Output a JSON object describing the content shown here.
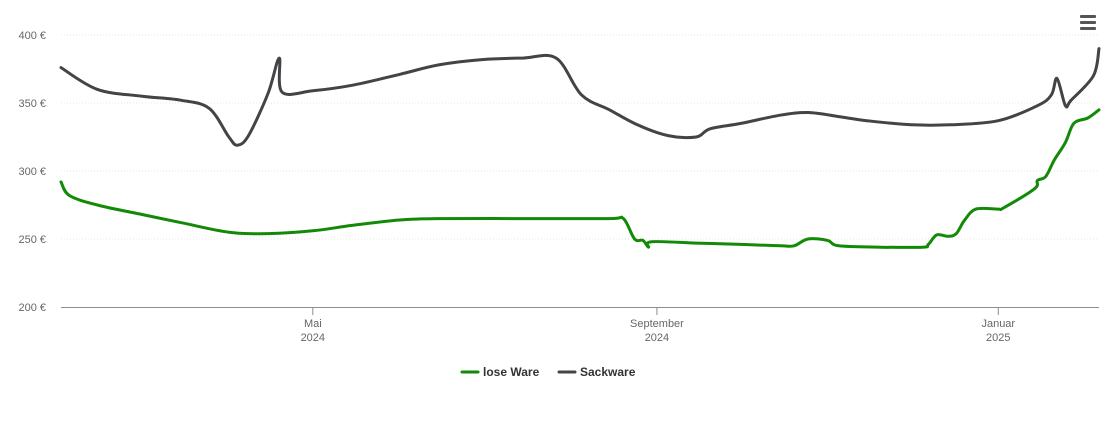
{
  "menu": {
    "icon": "hamburger-menu-icon"
  },
  "chart_data": {
    "type": "line",
    "title": "",
    "xlabel": "",
    "ylabel": "",
    "ylim": [
      200,
      400
    ],
    "y_ticks": [
      "200 €",
      "250 €",
      "300 €",
      "350 €",
      "400 €"
    ],
    "y_tick_values": [
      200,
      250,
      300,
      350,
      400
    ],
    "x_ticks": [
      {
        "date": "2024-05-01",
        "line1": "Mai",
        "line2": "2024"
      },
      {
        "date": "2024-09-01",
        "line1": "September",
        "line2": "2024"
      },
      {
        "date": "2025-01-01",
        "line1": "Januar",
        "line2": "2025"
      }
    ],
    "xlim": [
      "2024-02-01",
      "2025-02-06"
    ],
    "grid": true,
    "legend": "bottom-center",
    "series": [
      {
        "name": "lose Ware",
        "color": "#138a07",
        "points": [
          [
            "2024-02-01",
            292
          ],
          [
            "2024-02-04",
            282
          ],
          [
            "2024-02-14",
            275
          ],
          [
            "2024-03-01",
            268
          ],
          [
            "2024-03-15",
            262
          ],
          [
            "2024-04-01",
            255
          ],
          [
            "2024-04-15",
            254
          ],
          [
            "2024-05-01",
            256
          ],
          [
            "2024-05-15",
            260
          ],
          [
            "2024-06-01",
            264
          ],
          [
            "2024-06-15",
            265
          ],
          [
            "2024-07-15",
            265
          ],
          [
            "2024-08-15",
            265
          ],
          [
            "2024-08-20",
            265
          ],
          [
            "2024-08-24",
            250
          ],
          [
            "2024-08-27",
            249
          ],
          [
            "2024-08-29",
            244
          ],
          [
            "2024-08-30",
            248
          ],
          [
            "2024-09-15",
            247
          ],
          [
            "2024-10-01",
            246
          ],
          [
            "2024-10-15",
            245
          ],
          [
            "2024-10-20",
            245
          ],
          [
            "2024-10-25",
            250
          ],
          [
            "2024-11-01",
            249
          ],
          [
            "2024-11-05",
            245
          ],
          [
            "2024-11-20",
            244
          ],
          [
            "2024-12-05",
            244
          ],
          [
            "2024-12-07",
            246
          ],
          [
            "2024-12-10",
            253
          ],
          [
            "2024-12-14",
            252
          ],
          [
            "2024-12-17",
            254
          ],
          [
            "2024-12-20",
            264
          ],
          [
            "2024-12-24",
            272
          ],
          [
            "2025-01-01",
            272
          ],
          [
            "2025-01-03",
            273
          ],
          [
            "2025-01-14",
            287
          ],
          [
            "2025-01-15",
            293
          ],
          [
            "2025-01-18",
            296
          ],
          [
            "2025-01-21",
            308
          ],
          [
            "2025-01-25",
            321
          ],
          [
            "2025-01-28",
            335
          ],
          [
            "2025-02-02",
            339
          ],
          [
            "2025-02-06",
            345
          ]
        ]
      },
      {
        "name": "Sackware",
        "color": "#434348",
        "points": [
          [
            "2024-02-01",
            376
          ],
          [
            "2024-02-14",
            360
          ],
          [
            "2024-03-01",
            355
          ],
          [
            "2024-03-15",
            352
          ],
          [
            "2024-03-25",
            346
          ],
          [
            "2024-04-01",
            325
          ],
          [
            "2024-04-04",
            319
          ],
          [
            "2024-04-08",
            326
          ],
          [
            "2024-04-15",
            357
          ],
          [
            "2024-04-19",
            383
          ],
          [
            "2024-04-20",
            358
          ],
          [
            "2024-05-01",
            359
          ],
          [
            "2024-05-15",
            363
          ],
          [
            "2024-06-01",
            371
          ],
          [
            "2024-06-15",
            378
          ],
          [
            "2024-07-01",
            382
          ],
          [
            "2024-07-15",
            383
          ],
          [
            "2024-07-27",
            383
          ],
          [
            "2024-08-05",
            356
          ],
          [
            "2024-08-15",
            345
          ],
          [
            "2024-08-25",
            334
          ],
          [
            "2024-09-05",
            326
          ],
          [
            "2024-09-15",
            325
          ],
          [
            "2024-09-20",
            331
          ],
          [
            "2024-10-01",
            335
          ],
          [
            "2024-10-15",
            341
          ],
          [
            "2024-10-25",
            343
          ],
          [
            "2024-11-05",
            340
          ],
          [
            "2024-11-15",
            337
          ],
          [
            "2024-12-01",
            334
          ],
          [
            "2024-12-15",
            334
          ],
          [
            "2025-01-01",
            337
          ],
          [
            "2025-01-15",
            348
          ],
          [
            "2025-01-20",
            356
          ],
          [
            "2025-01-22",
            368
          ],
          [
            "2025-01-25",
            348
          ],
          [
            "2025-01-27",
            352
          ],
          [
            "2025-02-04",
            370
          ],
          [
            "2025-02-06",
            390
          ]
        ]
      }
    ]
  }
}
